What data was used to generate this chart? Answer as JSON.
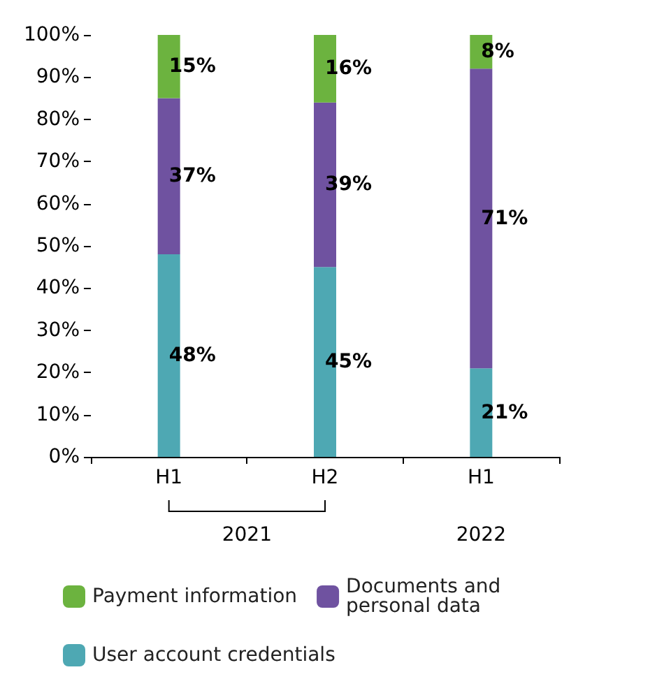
{
  "chart_data": {
    "type": "bar",
    "stacked": true,
    "categories": [
      "H1",
      "H2",
      "H1"
    ],
    "series": [
      {
        "name": "User account credentials",
        "color": "#4ea8b3",
        "values": [
          48,
          45,
          21
        ],
        "value_labels": [
          "48%",
          "45%",
          "21%"
        ]
      },
      {
        "name": "Documents and personal data",
        "color": "#6f52a0",
        "values": [
          37,
          39,
          71
        ],
        "value_labels": [
          "37%",
          "39%",
          "71%"
        ]
      },
      {
        "name": "Payment information",
        "color": "#6cb33f",
        "values": [
          15,
          16,
          8
        ],
        "value_labels": [
          "15%",
          "16%",
          "8%"
        ]
      }
    ],
    "ylim": [
      0,
      100
    ],
    "yticks": [
      {
        "value": 0,
        "label": "0%"
      },
      {
        "value": 10,
        "label": "10%"
      },
      {
        "value": 20,
        "label": "20%"
      },
      {
        "value": 30,
        "label": "30%"
      },
      {
        "value": 40,
        "label": "40%"
      },
      {
        "value": 50,
        "label": "50%"
      },
      {
        "value": 60,
        "label": "60%"
      },
      {
        "value": 70,
        "label": "70%"
      },
      {
        "value": 80,
        "label": "80%"
      },
      {
        "value": 90,
        "label": "90%"
      },
      {
        "value": 100,
        "label": "100%"
      }
    ],
    "annotations": [
      "2021",
      "2022"
    ],
    "legend": "bottom"
  }
}
